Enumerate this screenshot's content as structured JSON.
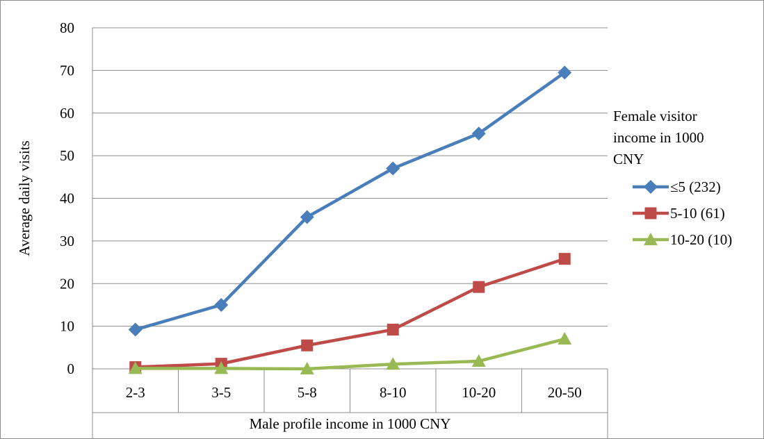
{
  "chart_data": {
    "type": "line",
    "title": "",
    "xlabel": "Male profile income in 1000 CNY",
    "ylabel": "Average daily visits",
    "categories": [
      "2-3",
      "3-5",
      "5-8",
      "8-10",
      "10-20",
      "20-50"
    ],
    "ylim": [
      0,
      80
    ],
    "yticks": [
      0,
      10,
      20,
      30,
      40,
      50,
      60,
      70,
      80
    ],
    "grid": "horizontal",
    "legend": {
      "title_lines": [
        "Female visitor",
        "income in 1000",
        "CNY"
      ],
      "placement": "right"
    },
    "series": [
      {
        "name": "≤5 (232)",
        "color": "#4a7ebb",
        "marker": "diamond",
        "values": [
          9.2,
          15.0,
          35.6,
          47.0,
          55.2,
          69.5
        ]
      },
      {
        "name": "5-10 (61)",
        "color": "#be4b48",
        "marker": "square",
        "values": [
          0.4,
          1.2,
          5.5,
          9.2,
          19.2,
          25.8
        ]
      },
      {
        "name": "10-20 (10)",
        "color": "#98b954",
        "marker": "triangle",
        "values": [
          0.1,
          0.1,
          0.0,
          1.1,
          1.8,
          7.0
        ]
      }
    ]
  }
}
